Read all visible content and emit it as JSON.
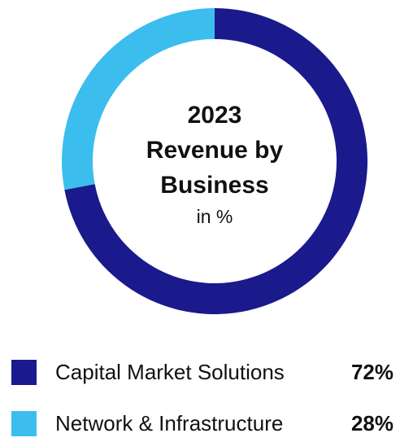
{
  "chart_data": {
    "type": "pie",
    "title_lines": [
      "2023",
      "Revenue by",
      "Business"
    ],
    "subtitle": "in %",
    "categories": [
      "Capital Market Solutions",
      "Network & Infrastructure"
    ],
    "values": [
      72,
      28
    ],
    "value_labels": [
      "72%",
      "28%"
    ],
    "colors": [
      "#1a1a8c",
      "#3bbdee"
    ],
    "legend_position": "bottom"
  }
}
